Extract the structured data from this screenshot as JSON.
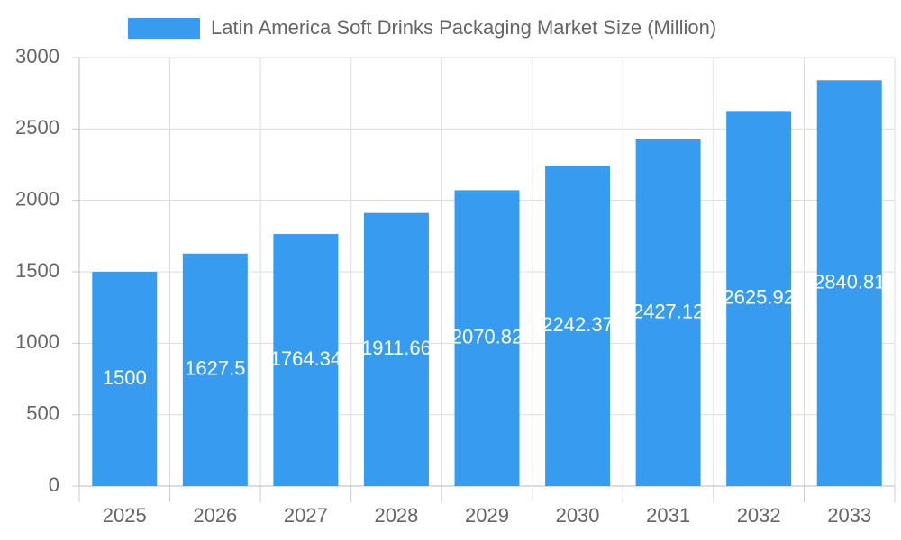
{
  "chart_data": {
    "type": "bar",
    "categories": [
      "2025",
      "2026",
      "2027",
      "2028",
      "2029",
      "2030",
      "2031",
      "2032",
      "2033"
    ],
    "series": [
      {
        "name": "Latin America Soft Drinks Packaging Market Size (Million)",
        "color": "#379cf0",
        "values": [
          1500,
          1627.5,
          1764.34,
          1911.66,
          2070.82,
          2242.37,
          2427.12,
          2625.92,
          2840.81
        ]
      }
    ],
    "ylim": [
      0,
      3000
    ],
    "yticks": [
      0,
      500,
      1000,
      1500,
      2000,
      2500,
      3000
    ],
    "grid": true,
    "legend": "top"
  }
}
